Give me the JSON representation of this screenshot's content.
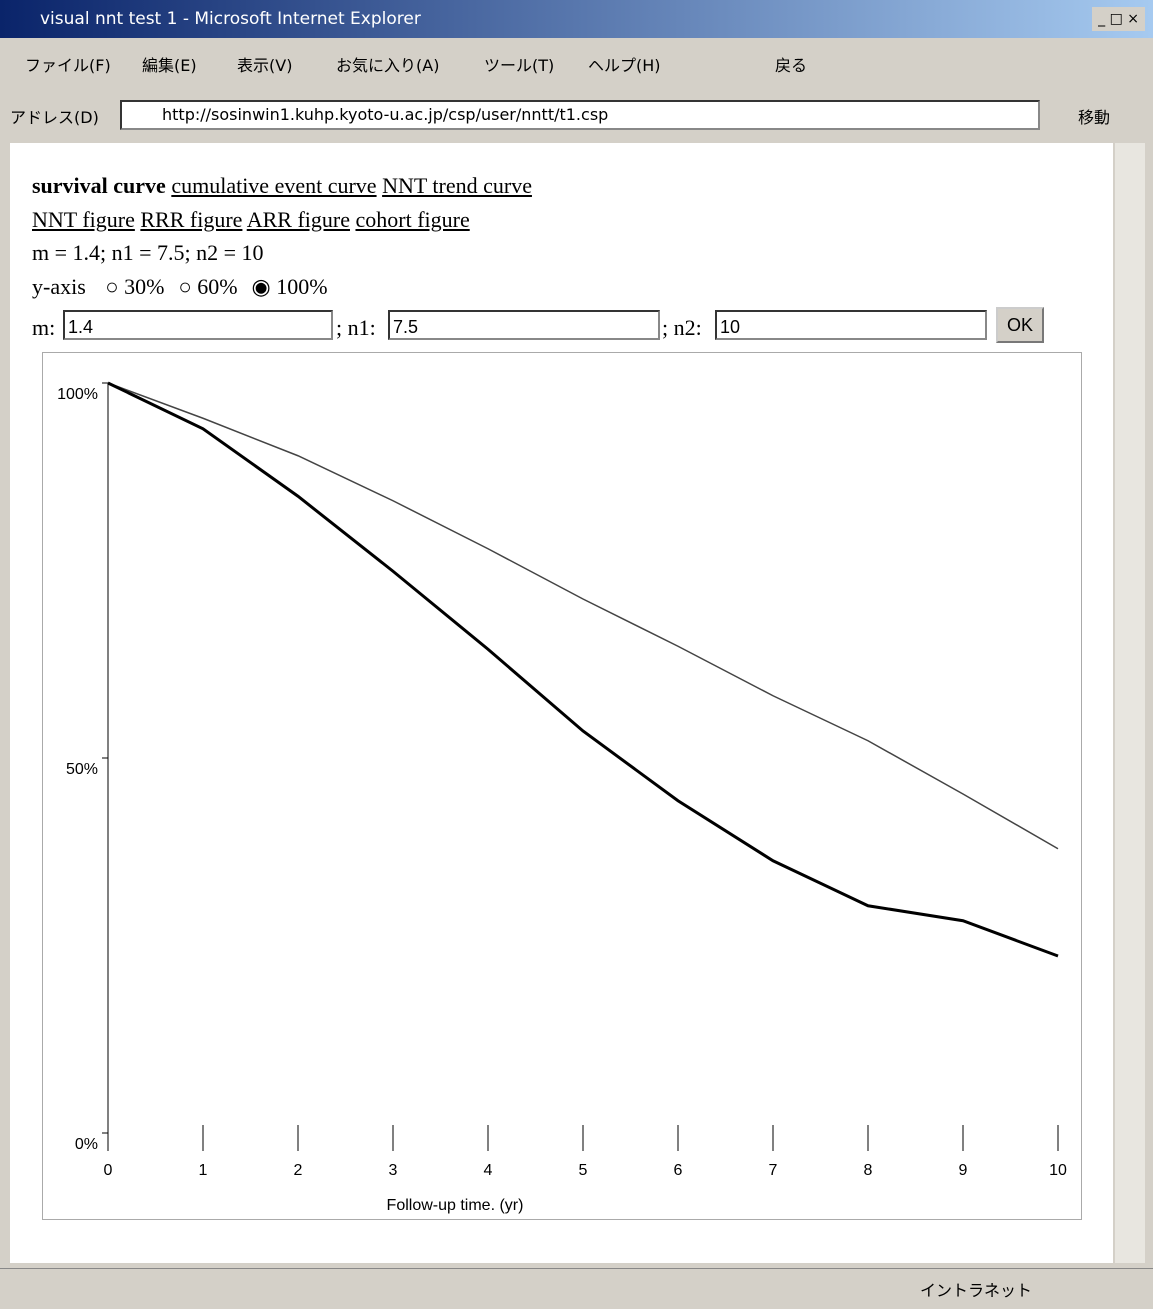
{
  "window": {
    "title": "visual nnt test 1 - Microsoft Internet Explorer"
  },
  "menu": [
    "ファイル(F)",
    "編集(E)",
    "表示(V)",
    "お気に入り(A)",
    "ツール(T)",
    "ヘルプ(H)"
  ],
  "toolbar": {
    "back": "戻る"
  },
  "address": {
    "label": "アドレス(D)",
    "url": "http://sosinwin1.kuhp.kyoto-u.ac.jp/csp/user/nntt/t1.csp",
    "go": "移動"
  },
  "content": {
    "links1": [
      "survival curve",
      "cumulative event curve",
      "NNT trend curve"
    ],
    "links2": [
      "NNT figure",
      "RRR figure",
      "ARR figure",
      "cohort figure"
    ],
    "params": "m = 1.4; n1 = 7.5; n2 = 10",
    "yaxis": {
      "label": "y-axis",
      "options": [
        "30%",
        "60%",
        "100%"
      ],
      "selected": 2
    },
    "form": {
      "m_label": "m:",
      "m": "1.4",
      "n1_label": "; n1:",
      "n1": "7.5",
      "n2_label": "; n2:",
      "n2": "10",
      "ok": "OK"
    }
  },
  "status": {
    "zone": "イントラネット"
  },
  "chart_data": {
    "type": "line",
    "x_label": "Follow-up time. (yr)",
    "x": [
      0,
      1,
      2,
      3,
      4,
      5,
      6,
      7,
      8,
      9,
      10
    ],
    "series": [
      {
        "color": "#444444",
        "width": 1.5,
        "values": [
          100,
          95.3,
          90.3,
          84.3,
          77.9,
          71.2,
          64.9,
          58.3,
          52.3,
          45.2,
          37.9
        ]
      },
      {
        "color": "#000000",
        "width": 3,
        "values": [
          100,
          93.9,
          84.9,
          74.9,
          64.5,
          53.6,
          44.3,
          36.3,
          30.3,
          28.3,
          23.6
        ]
      }
    ],
    "xlim": [
      0,
      10
    ],
    "xticks": [
      0,
      1,
      2,
      3,
      4,
      5,
      6,
      7,
      8,
      9,
      10
    ],
    "ylim": [
      0,
      100
    ],
    "yticks": [
      {
        "value": 0,
        "label": "0%"
      },
      {
        "value": 50,
        "label": "50%"
      },
      {
        "value": 100,
        "label": "100%"
      }
    ]
  }
}
